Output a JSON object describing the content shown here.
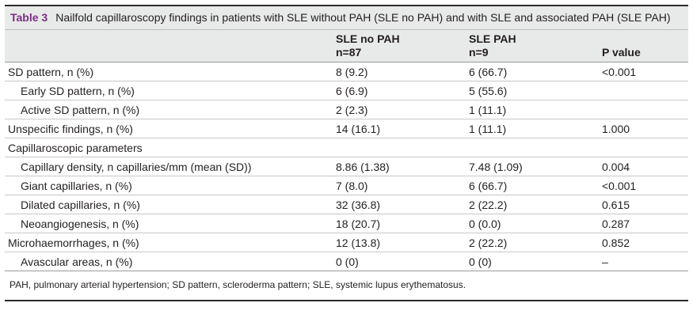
{
  "caption": {
    "label": "Table 3",
    "text": "Nailfold capillaroscopy findings in patients with SLE without PAH (SLE no PAH) and with SLE and associated PAH (SLE PAH)"
  },
  "headers": {
    "col1": "",
    "col2_line1": "SLE no PAH",
    "col2_line2": "n=87",
    "col3_line1": "SLE PAH",
    "col3_line2": "n=9",
    "col4": "P value"
  },
  "rows": [
    {
      "label": "SD pattern, n (%)",
      "indent": false,
      "a": "8 (9.2)",
      "b": "6 (66.7)",
      "p": "<0.001"
    },
    {
      "label": "Early SD pattern, n (%)",
      "indent": true,
      "a": "6 (6.9)",
      "b": "5 (55.6)",
      "p": ""
    },
    {
      "label": "Active SD pattern, n (%)",
      "indent": true,
      "a": "2 (2.3)",
      "b": "1 (11.1)",
      "p": ""
    },
    {
      "label": "Unspecific findings, n (%)",
      "indent": false,
      "a": "14 (16.1)",
      "b": "1 (11.1)",
      "p": "1.000"
    },
    {
      "label": "Capillaroscopic parameters",
      "indent": false,
      "a": "",
      "b": "",
      "p": ""
    },
    {
      "label": "Capillary density, n capillaries/mm (mean (SD))",
      "indent": true,
      "a": "8.86 (1.38)",
      "b": "7.48 (1.09)",
      "p": "0.004"
    },
    {
      "label": "Giant capillaries, n (%)",
      "indent": true,
      "a": "7 (8.0)",
      "b": "6 (66.7)",
      "p": "<0.001"
    },
    {
      "label": "Dilated capillaries, n (%)",
      "indent": true,
      "a": "32 (36.8)",
      "b": "2 (22.2)",
      "p": "0.615"
    },
    {
      "label": "Neoangiogenesis, n (%)",
      "indent": true,
      "a": "18 (20.7)",
      "b": "0 (0.0)",
      "p": "0.287"
    },
    {
      "label": "Microhaemorrhages, n (%)",
      "indent": false,
      "a": "12 (13.8)",
      "b": "2 (22.2)",
      "p": "0.852"
    },
    {
      "label": "Avascular areas, n (%)",
      "indent": true,
      "a": "0 (0)",
      "b": "0 (0)",
      "p": "–"
    }
  ],
  "footnote": "PAH, pulmonary arterial hypertension; SD pattern, scleroderma pattern; SLE, systemic lupus erythematosus."
}
